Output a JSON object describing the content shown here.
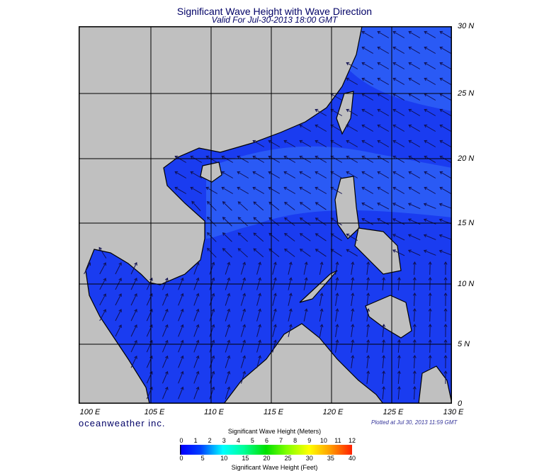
{
  "header": {
    "title": "Significant Wave Height with Wave Direction",
    "subtitle": "Valid For Jul-30-2013 18:00 GMT"
  },
  "map": {
    "lat_labels": [
      "30 N",
      "25 N",
      "20 N",
      "15 N",
      "10 N",
      "5 N",
      "0"
    ],
    "lon_labels": [
      "100 E",
      "105 E",
      "110 E",
      "115 E",
      "120 E",
      "125 E",
      "130 E"
    ],
    "colors": {
      "land": "#c0c0c0",
      "ocean": "#1a3cf0",
      "ocean_light": "#2a5af5",
      "ocean_dark": "#0f22d8",
      "arrow": "#101050",
      "coast": "#000000"
    }
  },
  "footer": {
    "logo": "oceanweather inc.",
    "plotted": "Plotted at Jul 30, 2013 11:59 GMT"
  },
  "legend": {
    "title_meters": "Significant Wave Height (Meters)",
    "meters_ticks": [
      "0",
      "1",
      "2",
      "3",
      "4",
      "5",
      "6",
      "7",
      "8",
      "9",
      "10",
      "11",
      "12"
    ],
    "feet_ticks": [
      "0",
      "5",
      "10",
      "15",
      "20",
      "25",
      "30",
      "35",
      "40"
    ],
    "title_feet": "Significant Wave Height (Feet)"
  }
}
